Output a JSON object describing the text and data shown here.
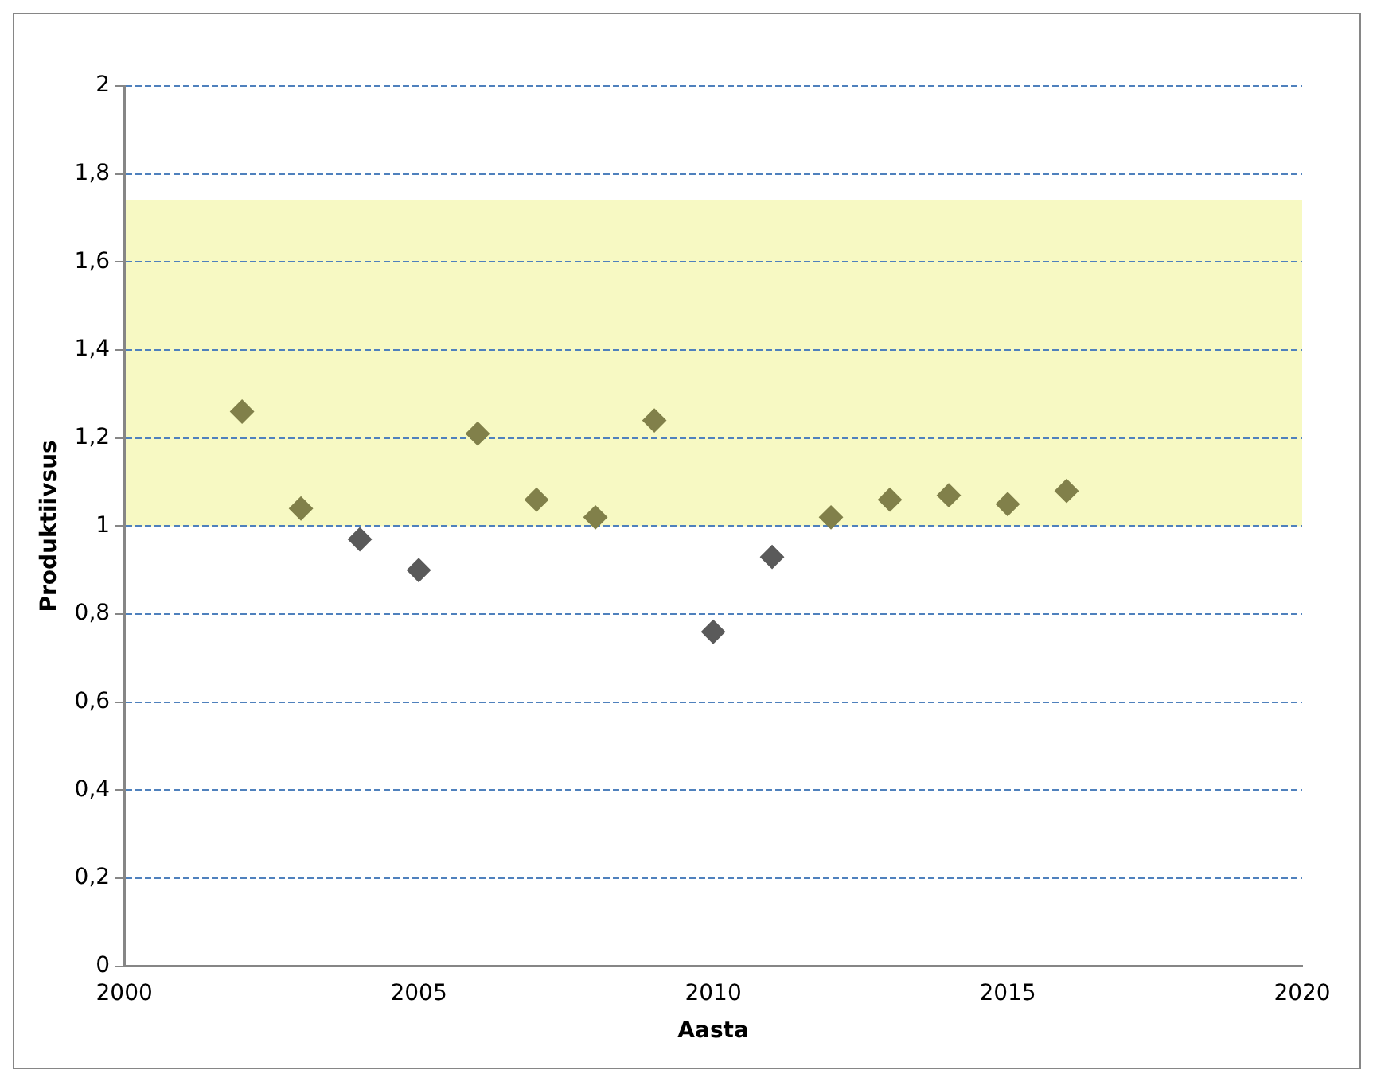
{
  "chart_data": {
    "type": "scatter",
    "xlabel": "Aasta",
    "ylabel": "Produktiivsus",
    "x": [
      2002,
      2003,
      2004,
      2005,
      2006,
      2007,
      2008,
      2009,
      2010,
      2011,
      2012,
      2013,
      2014,
      2015,
      2016
    ],
    "values": [
      1.26,
      1.04,
      0.97,
      0.9,
      1.21,
      1.06,
      1.02,
      1.24,
      0.76,
      0.93,
      1.02,
      1.06,
      1.07,
      1.05,
      1.08
    ],
    "colors": [
      "#81804a",
      "#81804a",
      "#5a5a5a",
      "#5a5a5a",
      "#81804a",
      "#81804a",
      "#81804a",
      "#81804a",
      "#5a5a5a",
      "#5a5a5a",
      "#81804a",
      "#81804a",
      "#81804a",
      "#81804a",
      "#81804a"
    ],
    "marker": "diamond",
    "xlim": [
      2000,
      2020
    ],
    "xticks": [
      2000,
      2005,
      2010,
      2015,
      2020
    ],
    "ylim": [
      0,
      2
    ],
    "yticks": [
      0,
      {
        "value": 0.2,
        "label": "0,2"
      },
      {
        "value": 0.4,
        "label": "0,4"
      },
      {
        "value": 0.6,
        "label": "0,6"
      },
      {
        "value": 0.8,
        "label": "0,8"
      },
      1,
      {
        "value": 1.2,
        "label": "1,2"
      },
      {
        "value": 1.4,
        "label": "1,4"
      },
      {
        "value": 1.6,
        "label": "1,6"
      },
      {
        "value": 1.8,
        "label": "1,8"
      },
      2
    ],
    "grid": "y",
    "legend": false,
    "bands": [
      {
        "axis": "y",
        "from": 1,
        "to": 1.74,
        "color": "#f7f9c3"
      }
    ]
  }
}
